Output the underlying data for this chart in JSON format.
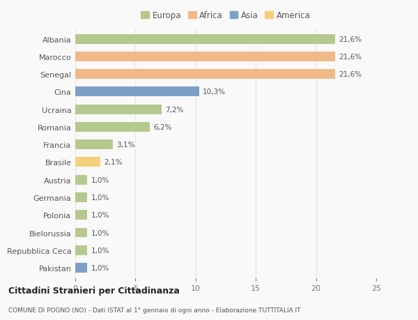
{
  "countries": [
    "Albania",
    "Marocco",
    "Senegal",
    "Cina",
    "Ucraina",
    "Romania",
    "Francia",
    "Brasile",
    "Austria",
    "Germania",
    "Polonia",
    "Bielorussia",
    "Repubblica Ceca",
    "Pakistan"
  ],
  "values": [
    21.6,
    21.6,
    21.6,
    10.3,
    7.2,
    6.2,
    3.1,
    2.1,
    1.0,
    1.0,
    1.0,
    1.0,
    1.0,
    1.0
  ],
  "labels": [
    "21,6%",
    "21,6%",
    "21,6%",
    "10,3%",
    "7,2%",
    "6,2%",
    "3,1%",
    "2,1%",
    "1,0%",
    "1,0%",
    "1,0%",
    "1,0%",
    "1,0%",
    "1,0%"
  ],
  "continents": [
    "Europa",
    "Africa",
    "Africa",
    "Asia",
    "Europa",
    "Europa",
    "Europa",
    "America",
    "Europa",
    "Europa",
    "Europa",
    "Europa",
    "Europa",
    "Asia"
  ],
  "colors": {
    "Europa": "#b5c98e",
    "Africa": "#f0b987",
    "Asia": "#7b9fc7",
    "America": "#f5d07a"
  },
  "legend_order": [
    "Europa",
    "Africa",
    "Asia",
    "America"
  ],
  "xlim": [
    0,
    25
  ],
  "xticks": [
    0,
    5,
    10,
    15,
    20,
    25
  ],
  "title": "Cittadini Stranieri per Cittadinanza",
  "subtitle": "COMUNE DI POGNO (NO) - Dati ISTAT al 1° gennaio di ogni anno - Elaborazione TUTTITALIA.IT",
  "background_color": "#f9f9f9",
  "grid_color": "#e8e8e8",
  "bar_height": 0.55
}
